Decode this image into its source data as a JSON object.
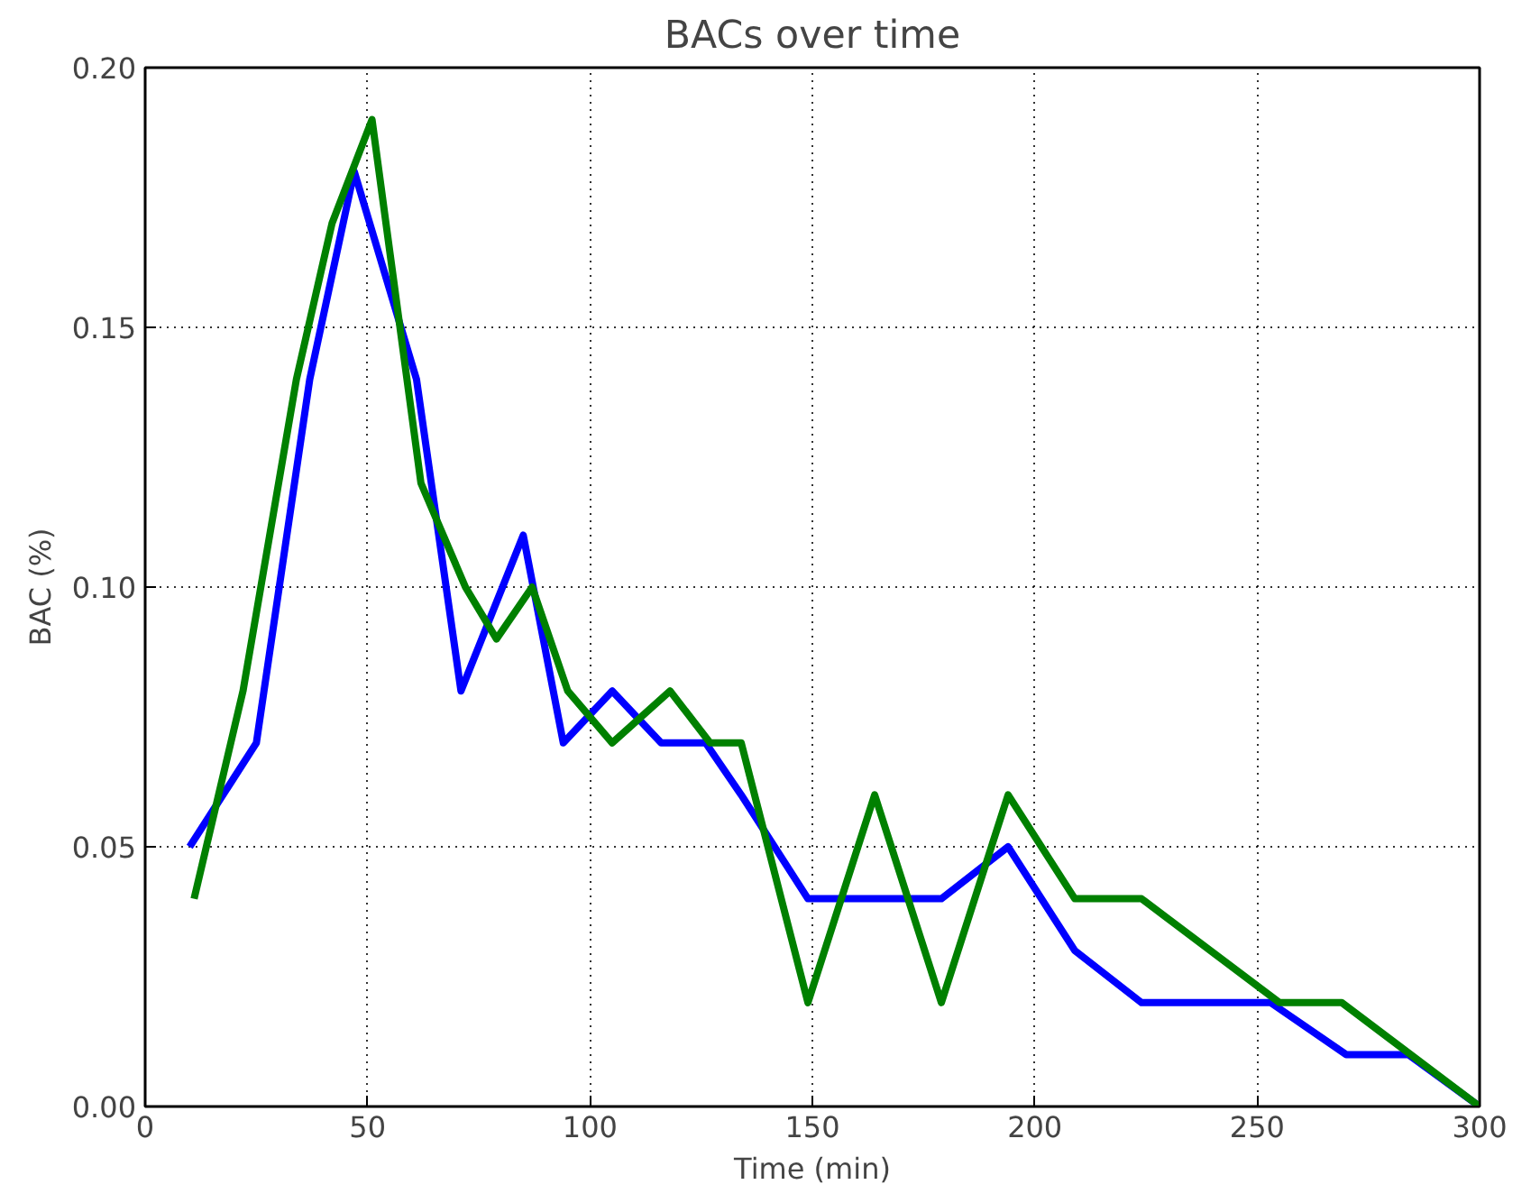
{
  "chart_data": {
    "type": "line",
    "title": "BACs over time",
    "xlabel": "Time (min)",
    "ylabel": "BAC (%)",
    "xlim": [
      0,
      300
    ],
    "ylim": [
      0,
      0.2
    ],
    "xticks": [
      0,
      50,
      100,
      150,
      200,
      250,
      300
    ],
    "yticks": [
      {
        "value": 0,
        "label": "0.00"
      },
      {
        "value": 0.05,
        "label": "0.05"
      },
      {
        "value": 0.1,
        "label": "0.10"
      },
      {
        "value": 0.15,
        "label": "0.15"
      },
      {
        "value": 0.2,
        "label": "0.20"
      }
    ],
    "grid": true,
    "series": [
      {
        "color": "#0000ff",
        "x": [
          10,
          25,
          37,
          47,
          61,
          71,
          85,
          94,
          105,
          116,
          126,
          134,
          149,
          179,
          194,
          209,
          224,
          253,
          270,
          284,
          300
        ],
        "values": [
          0.05,
          0.07,
          0.14,
          0.18,
          0.14,
          0.08,
          0.11,
          0.07,
          0.08,
          0.07,
          0.07,
          0.06,
          0.04,
          0.04,
          0.05,
          0.03,
          0.02,
          0.02,
          0.01,
          0.01,
          0
        ]
      },
      {
        "color": "#008000",
        "x": [
          11,
          22,
          34,
          42,
          51,
          62,
          72,
          79,
          87,
          95,
          105,
          118,
          127,
          134,
          149,
          164,
          179,
          194,
          209,
          224,
          255,
          269,
          300
        ],
        "values": [
          0.04,
          0.08,
          0.14,
          0.17,
          0.19,
          0.12,
          0.1,
          0.09,
          0.1,
          0.08,
          0.07,
          0.08,
          0.07,
          0.07,
          0.02,
          0.06,
          0.02,
          0.06,
          0.04,
          0.04,
          0.02,
          0.02,
          0
        ]
      }
    ]
  }
}
